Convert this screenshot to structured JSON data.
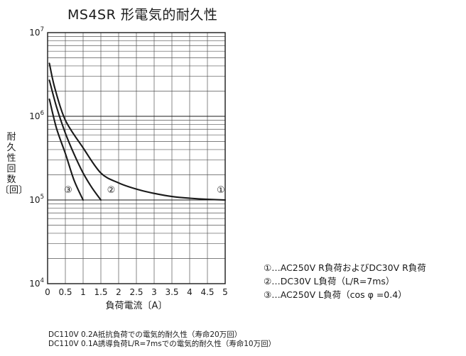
{
  "chart_data": {
    "type": "line",
    "title": "MS4SR 形電気的耐久性",
    "xlabel": "負荷電流〔A〕",
    "ylabel_chars": [
      "耐",
      "久",
      "性",
      "回",
      "数",
      "〔回〕"
    ],
    "x_scale": "linear",
    "y_scale": "log",
    "xlim": [
      0,
      5
    ],
    "ylim": [
      10000,
      10000000
    ],
    "x_ticks": [
      "0",
      "0.5",
      "1",
      "1.5",
      "2",
      "2.5",
      "3",
      "3.5",
      "4",
      "4.5",
      "5"
    ],
    "y_ticks": [
      {
        "value": 10000,
        "base": "10",
        "exp": "4"
      },
      {
        "value": 100000,
        "base": "10",
        "exp": "5"
      },
      {
        "value": 1000000,
        "base": "10",
        "exp": "6"
      },
      {
        "value": 10000000,
        "base": "10",
        "exp": "7"
      }
    ],
    "grid": true,
    "series": [
      {
        "label": "①",
        "x": [
          0.05,
          0.2,
          0.5,
          1.0,
          1.5,
          2.0,
          2.5,
          3.0,
          3.5,
          4.0,
          4.5,
          5.0
        ],
        "y": [
          4300000,
          2200000,
          900000,
          420000,
          210000,
          160000,
          135000,
          120000,
          110000,
          105000,
          102000,
          100000
        ]
      },
      {
        "label": "②",
        "x": [
          0.05,
          0.25,
          0.5,
          0.75,
          1.0,
          1.25,
          1.5
        ],
        "y": [
          2700000,
          1300000,
          630000,
          350000,
          210000,
          140000,
          100000
        ]
      },
      {
        "label": "③",
        "x": [
          0.05,
          0.25,
          0.5,
          0.75,
          1.0
        ],
        "y": [
          1600000,
          720000,
          360000,
          170000,
          100000
        ]
      }
    ]
  },
  "legend": [
    "①…AC250V  R負荷およびDC30V  R負荷",
    "②…DC30V  L負荷（L/R=7ms）",
    "③…AC250V  L負荷（cos φ =0.4）"
  ],
  "notes": [
    "DC110V 0.2A抵抗負荷での電気的耐久性（寿命20万回）",
    "DC110V 0.1A誘導負荷L/R=7msでの電気的耐久性（寿命10万回）"
  ]
}
